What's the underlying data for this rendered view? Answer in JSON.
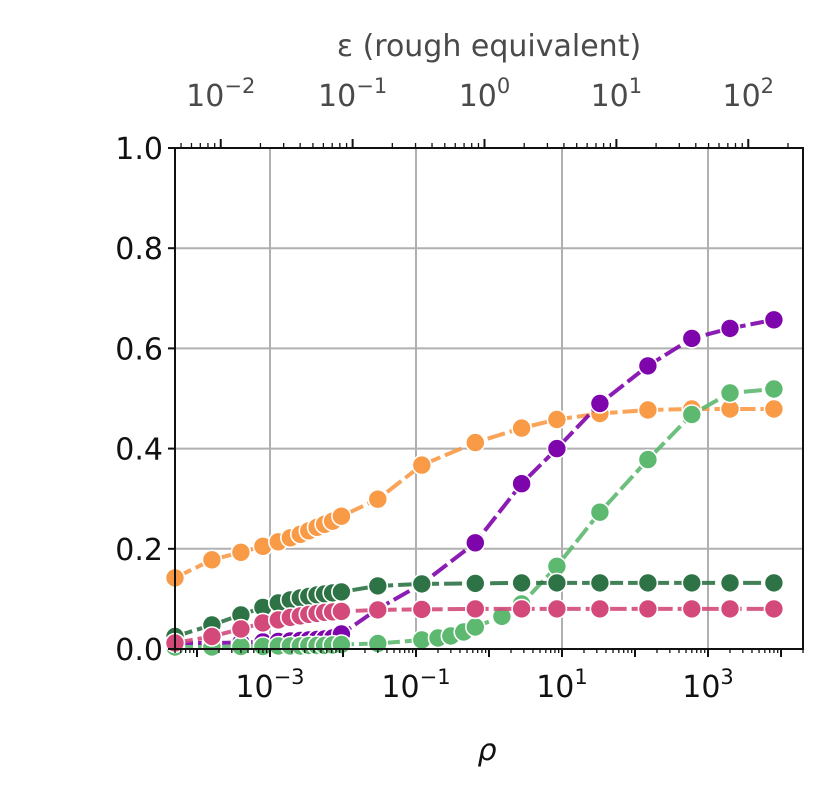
{
  "chart_data": {
    "type": "line",
    "x_scale": "log",
    "x_range": [
      5e-05,
      20000
    ],
    "ylim": [
      0,
      1
    ],
    "grid": true,
    "xlabel": "ρ",
    "ylabel": "",
    "x_ticks": [
      {
        "value": 0.001,
        "base": "10",
        "exp": "−3"
      },
      {
        "value": 0.1,
        "base": "10",
        "exp": "−1"
      },
      {
        "value": 10,
        "base": "10",
        "exp": "1"
      },
      {
        "value": 1000,
        "base": "10",
        "exp": "3"
      }
    ],
    "y_ticks": [
      {
        "value": 0,
        "label": "0.0"
      },
      {
        "value": 0.2,
        "label": "0.2"
      },
      {
        "value": 0.4,
        "label": "0.4"
      },
      {
        "value": 0.6,
        "label": "0.6"
      },
      {
        "value": 0.8,
        "label": "0.8"
      },
      {
        "value": 1,
        "label": "1.0"
      }
    ],
    "top_axis": {
      "label": "ε (rough equivalent)",
      "scale": "log",
      "range": [
        0.0045,
        260
      ],
      "ticks": [
        {
          "value": 0.01,
          "base": "10",
          "exp": "−2"
        },
        {
          "value": 0.1,
          "base": "10",
          "exp": "−1"
        },
        {
          "value": 1,
          "base": "10",
          "exp": "0"
        },
        {
          "value": 10,
          "base": "10",
          "exp": "1"
        },
        {
          "value": 100,
          "base": "10",
          "exp": "2"
        }
      ]
    },
    "series": [
      {
        "color": "#f99a47",
        "x": [
          5e-05,
          0.00016,
          0.0004,
          0.0008,
          0.0013,
          0.0019,
          0.0026,
          0.0034,
          0.0044,
          0.0056,
          0.0072,
          0.0095,
          0.03,
          0.12,
          0.65,
          2.8,
          8.5,
          33,
          150,
          600,
          2000,
          8000
        ],
        "y": [
          0.142,
          0.178,
          0.193,
          0.205,
          0.214,
          0.222,
          0.229,
          0.236,
          0.243,
          0.249,
          0.255,
          0.265,
          0.299,
          0.367,
          0.412,
          0.441,
          0.458,
          0.47,
          0.477,
          0.479,
          0.479,
          0.479
        ]
      },
      {
        "color": "#7e04ac",
        "x": [
          5e-05,
          0.00016,
          0.0004,
          0.0008,
          0.0013,
          0.0019,
          0.0026,
          0.0034,
          0.0044,
          0.0056,
          0.0072,
          0.0095,
          0.03,
          0.12,
          0.65,
          2.8,
          8.5,
          33,
          150,
          600,
          2000,
          8000
        ],
        "y": [
          0.012,
          0.012,
          0.013,
          0.014,
          0.015,
          0.016,
          0.017,
          0.018,
          0.019,
          0.02,
          0.022,
          0.03,
          0.08,
          0.13,
          0.212,
          0.33,
          0.4,
          0.49,
          0.565,
          0.62,
          0.64,
          0.657
        ]
      },
      {
        "color": "#5db870",
        "x": [
          5e-05,
          0.00016,
          0.0004,
          0.0008,
          0.0013,
          0.0019,
          0.0026,
          0.0034,
          0.0044,
          0.0056,
          0.0072,
          0.0095,
          0.03,
          0.12,
          0.2,
          0.3,
          0.45,
          0.65,
          1.5,
          2.8,
          8.5,
          33,
          150,
          600,
          2000,
          8000
        ],
        "y": [
          0.004,
          0.004,
          0.005,
          0.005,
          0.006,
          0.006,
          0.006,
          0.007,
          0.007,
          0.007,
          0.008,
          0.009,
          0.011,
          0.018,
          0.022,
          0.026,
          0.034,
          0.044,
          0.065,
          0.09,
          0.165,
          0.273,
          0.378,
          0.468,
          0.511,
          0.519
        ]
      },
      {
        "color": "#2e7345",
        "x": [
          5e-05,
          0.00016,
          0.0004,
          0.0008,
          0.0013,
          0.0019,
          0.0026,
          0.0034,
          0.0044,
          0.0056,
          0.0072,
          0.0095,
          0.03,
          0.12,
          0.65,
          2.8,
          8.5,
          33,
          150,
          600,
          2000,
          8000
        ],
        "y": [
          0.025,
          0.048,
          0.068,
          0.083,
          0.092,
          0.098,
          0.102,
          0.105,
          0.108,
          0.11,
          0.112,
          0.114,
          0.126,
          0.13,
          0.131,
          0.132,
          0.132,
          0.132,
          0.132,
          0.132,
          0.132,
          0.132
        ]
      },
      {
        "color": "#d34a7a",
        "x": [
          5e-05,
          0.00016,
          0.0004,
          0.0008,
          0.0013,
          0.0019,
          0.0026,
          0.0034,
          0.0044,
          0.0056,
          0.0072,
          0.0095,
          0.03,
          0.12,
          0.65,
          2.8,
          8.5,
          33,
          150,
          600,
          2000,
          8000
        ],
        "y": [
          0.012,
          0.025,
          0.04,
          0.052,
          0.058,
          0.063,
          0.066,
          0.069,
          0.071,
          0.073,
          0.074,
          0.075,
          0.078,
          0.079,
          0.08,
          0.08,
          0.08,
          0.08,
          0.08,
          0.08,
          0.08,
          0.08
        ]
      }
    ]
  }
}
